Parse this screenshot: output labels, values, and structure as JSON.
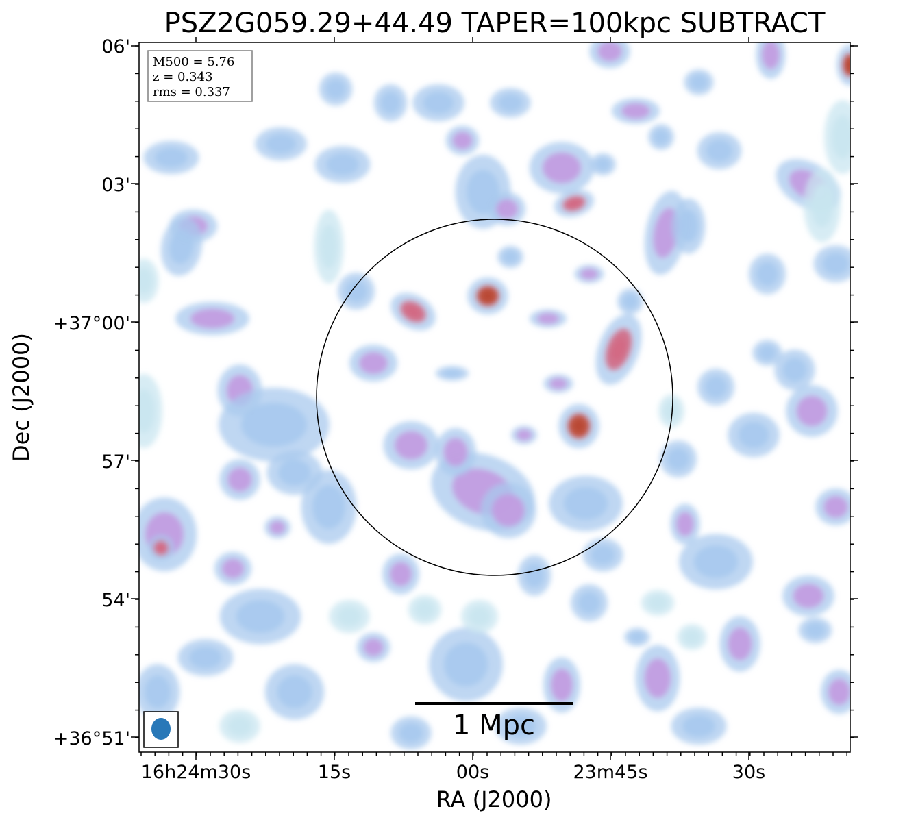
{
  "title": "PSZ2G059.29+44.49 TAPER=100kpc SUBTRACT",
  "axes": {
    "xlabel": "RA (J2000)",
    "ylabel": "Dec (J2000)",
    "xticks": [
      "16h24m30s",
      "15s",
      "00s",
      "23m45s",
      "30s"
    ],
    "yticks": [
      "06'",
      "03'",
      "+37°00'",
      "57'",
      "54'",
      "+36°51'"
    ]
  },
  "info_box": {
    "line1": "M500 = 5.76",
    "line2": "z = 0.343",
    "line3": "rms = 0.337"
  },
  "scale_bar": {
    "label": "1 Mpc"
  },
  "colors": {
    "faint_emission": "#c9e6f0",
    "low_emission": "#a9c9ee",
    "mid_emission": "#c39ae0",
    "high_emission": "#d36a84",
    "peak_emission": "#c4503c",
    "beam": "#2878b8"
  }
}
